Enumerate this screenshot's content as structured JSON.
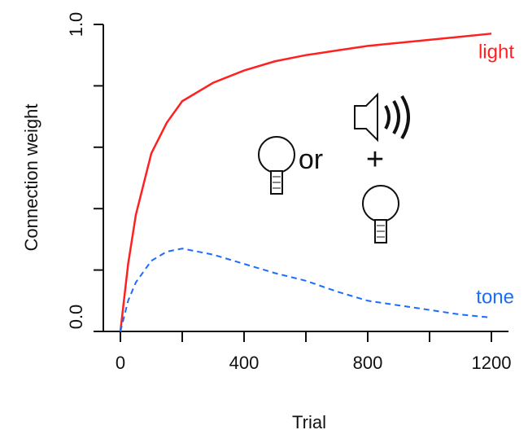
{
  "chart_data": {
    "type": "line",
    "x_label": "Trial",
    "y_label": "Connection weight",
    "x": [
      0,
      25,
      50,
      100,
      150,
      200,
      300,
      400,
      500,
      600,
      700,
      800,
      900,
      1000,
      1100,
      1200
    ],
    "series": [
      {
        "name": "light",
        "color": "#ff2020",
        "dash": false,
        "values": [
          0,
          0.22,
          0.38,
          0.58,
          0.68,
          0.75,
          0.81,
          0.85,
          0.88,
          0.9,
          0.915,
          0.93,
          0.94,
          0.95,
          0.96,
          0.97
        ]
      },
      {
        "name": "tone",
        "color": "#1a6cff",
        "dash": true,
        "values": [
          0,
          0.1,
          0.16,
          0.23,
          0.26,
          0.27,
          0.25,
          0.22,
          0.19,
          0.165,
          0.13,
          0.1,
          0.085,
          0.07,
          0.055,
          0.045
        ]
      }
    ],
    "xlim": [
      0,
      1200
    ],
    "ylim": [
      0,
      1
    ],
    "xticks": [
      0,
      400,
      800,
      1200
    ],
    "xminor_ticks": [
      200,
      600,
      1000
    ],
    "yticks": [
      {
        "value": 0,
        "label": "0.0"
      },
      {
        "value": 1,
        "label": "1.0"
      }
    ],
    "yminor_ticks": [
      0.2,
      0.4,
      0.6,
      0.8
    ],
    "annotations": [
      "or",
      "+"
    ]
  }
}
